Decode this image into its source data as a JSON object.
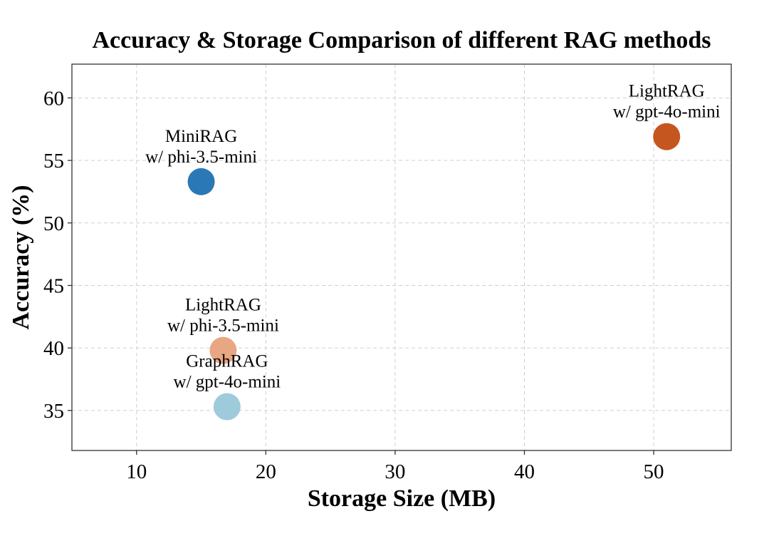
{
  "chart_data": {
    "type": "scatter",
    "title": "Accuracy & Storage Comparison of different RAG methods",
    "xlabel": "Storage Size (MB)",
    "ylabel": "Accuracy (%)",
    "xlim": [
      5,
      56
    ],
    "ylim": [
      31.8,
      62.7
    ],
    "xticks": [
      10,
      20,
      30,
      40,
      50
    ],
    "yticks": [
      35,
      40,
      45,
      50,
      55,
      60
    ],
    "grid": true,
    "points": [
      {
        "name": "MiniRAG",
        "model": "w/ phi-3.5-mini",
        "x": 15.0,
        "y": 53.3,
        "color": "#2a78b5",
        "label_position": "above"
      },
      {
        "name": "LightRAG",
        "model": "w/ gpt-4o-mini",
        "x": 51.0,
        "y": 56.9,
        "color": "#c65620",
        "label_position": "above"
      },
      {
        "name": "LightRAG",
        "model": "w/ phi-3.5-mini",
        "x": 16.7,
        "y": 39.8,
        "color": "#e9a683",
        "label_position": "above"
      },
      {
        "name": "GraphRAG",
        "model": "w/ gpt-4o-mini",
        "x": 17.0,
        "y": 35.3,
        "color": "#9ecbdc",
        "label_position": "above"
      }
    ]
  }
}
